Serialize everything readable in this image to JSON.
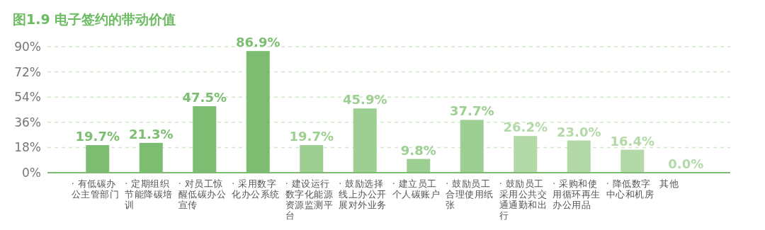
{
  "chart_data": {
    "type": "bar",
    "title": "图1.9 电子签约的带动价值",
    "categories": [
      "· 有低碳办公主管部门",
      "· 定期组织节能降碳培训",
      "· 对员工惊醒低碳办公宣传",
      "· 采用数字化办公系统",
      "· 建设运行数字化能源资源监测平台",
      "· 鼓励选择线上办公开展对外业务",
      "· 建立员工个人碳账户",
      "· 鼓励员工合理使用纸张",
      "· 鼓励员工采用公共交通通勤和出行",
      "· 采购和使用循环再生办公用品",
      "· 降低数字中心和机房",
      "其他"
    ],
    "values": [
      19.7,
      21.3,
      47.5,
      86.9,
      19.7,
      45.9,
      9.8,
      37.7,
      26.2,
      23.0,
      16.4,
      0.0
    ],
    "value_labels": [
      "19.7%",
      "21.3%",
      "47.5%",
      "86.9%",
      "19.7%",
      "45.9%",
      "9.8%",
      "37.7%",
      "26.2%",
      "23.0%",
      "16.4%",
      "0.0%"
    ],
    "colors": [
      "#7dbd72",
      "#7dbd72",
      "#7dbd72",
      "#7dbd72",
      "#9dcf92",
      "#9dcf92",
      "#9dcf92",
      "#9dcf92",
      "#b3d9a9",
      "#b3d9a9",
      "#b3d9a9",
      "#b3d9a9"
    ],
    "ylim": [
      0,
      90
    ],
    "yticks": [
      {
        "value": 0,
        "label": "0%"
      },
      {
        "value": 18,
        "label": "18%"
      },
      {
        "value": 36,
        "label": "36%"
      },
      {
        "value": 54,
        "label": "54%"
      },
      {
        "value": 72,
        "label": "72%"
      },
      {
        "value": 90,
        "label": "90%"
      }
    ],
    "grid": "y"
  }
}
